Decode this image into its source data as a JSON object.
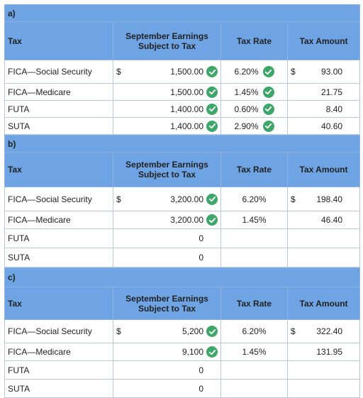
{
  "headers": {
    "tax": "Tax",
    "earnings": "September Earnings Subject to Tax",
    "rate": "Tax Rate",
    "amount": "Tax Amount"
  },
  "currency_symbol": "$",
  "sections": [
    {
      "letter": "a)",
      "rows": [
        {
          "tax": "FICA—Social Security",
          "dollar": true,
          "earnings": "1,500.00",
          "earnings_check": true,
          "rate": "6.20%",
          "rate_check": true,
          "amount_dollar": true,
          "amount": "93.00"
        },
        {
          "tax": "FICA—Medicare",
          "dollar": false,
          "earnings": "1,500.00",
          "earnings_check": true,
          "rate": "1.45%",
          "rate_check": true,
          "amount_dollar": false,
          "amount": "21.75"
        },
        {
          "tax": "FUTA",
          "dollar": false,
          "earnings": "1,400.00",
          "earnings_check": true,
          "rate": "0.60%",
          "rate_check": true,
          "amount_dollar": false,
          "amount": "8.40"
        },
        {
          "tax": "SUTA",
          "dollar": false,
          "earnings": "1,400.00",
          "earnings_check": true,
          "rate": "2.90%",
          "rate_check": true,
          "amount_dollar": false,
          "amount": "40.60"
        }
      ]
    },
    {
      "letter": "b)",
      "rows": [
        {
          "tax": "FICA—Social Security",
          "dollar": true,
          "earnings": "3,200.00",
          "earnings_check": true,
          "rate": "6.20%",
          "rate_check": false,
          "amount_dollar": true,
          "amount": "198.40"
        },
        {
          "tax": "FICA—Medicare",
          "dollar": false,
          "earnings": "3,200.00",
          "earnings_check": true,
          "rate": "1.45%",
          "rate_check": false,
          "amount_dollar": false,
          "amount": "46.40"
        },
        {
          "tax": "FUTA",
          "dollar": false,
          "earnings": "0",
          "earnings_check": false,
          "rate": "",
          "rate_check": false,
          "amount_dollar": false,
          "amount": ""
        },
        {
          "tax": "SUTA",
          "dollar": false,
          "earnings": "0",
          "earnings_check": false,
          "rate": "",
          "rate_check": false,
          "amount_dollar": false,
          "amount": ""
        }
      ]
    },
    {
      "letter": "c)",
      "rows": [
        {
          "tax": "FICA—Social Security",
          "dollar": true,
          "earnings": "5,200",
          "earnings_check": true,
          "rate": "6.20%",
          "rate_check": false,
          "amount_dollar": true,
          "amount": "322.40"
        },
        {
          "tax": "FICA—Medicare",
          "dollar": false,
          "earnings": "9,100",
          "earnings_check": true,
          "rate": "1.45%",
          "rate_check": false,
          "amount_dollar": false,
          "amount": "131.95"
        },
        {
          "tax": "FUTA",
          "dollar": false,
          "earnings": "0",
          "earnings_check": false,
          "rate": "",
          "rate_check": false,
          "amount_dollar": false,
          "amount": ""
        },
        {
          "tax": "SUTA",
          "dollar": false,
          "earnings": "0",
          "earnings_check": false,
          "rate": "",
          "rate_check": false,
          "amount_dollar": false,
          "amount": ""
        }
      ]
    }
  ]
}
